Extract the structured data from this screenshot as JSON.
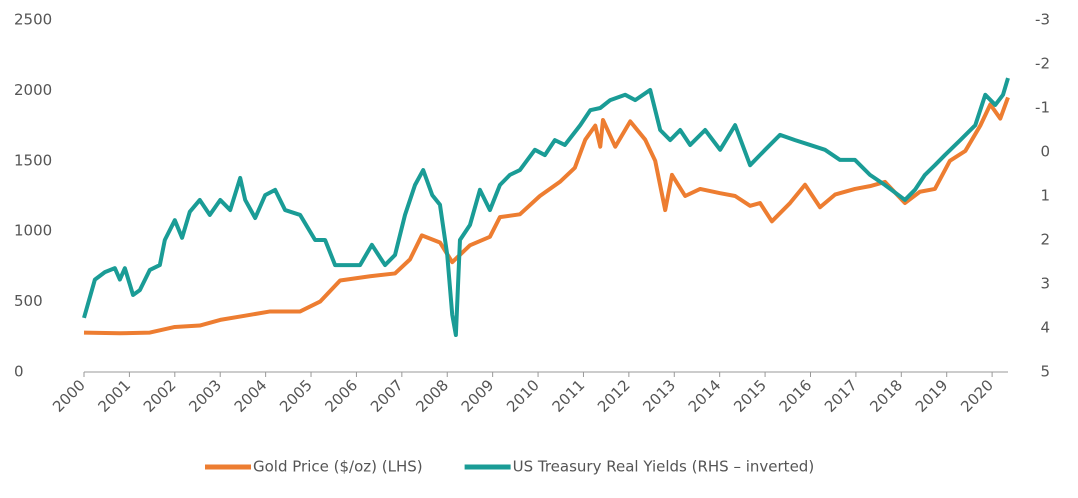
{
  "chart_data": {
    "type": "line",
    "xlim": [
      2000,
      2020.35
    ],
    "xticks": [
      2000,
      2001,
      2002,
      2003,
      2004,
      2005,
      2006,
      2007,
      2008,
      2009,
      2010,
      2011,
      2012,
      2013,
      2014,
      2015,
      2016,
      2017,
      2018,
      2019,
      2020
    ],
    "ylim": [
      0,
      2500
    ],
    "yticks": [
      0,
      500,
      1000,
      1500,
      2000,
      2500
    ],
    "y2lim": [
      5,
      -3
    ],
    "y2ticks": [
      5,
      4,
      3,
      2,
      1,
      0,
      -1,
      -2,
      -3
    ],
    "legend": "bottom",
    "series": [
      {
        "name": "Gold Price ($/oz) (LHS)",
        "color": "#ed7d31",
        "x": [
          2000,
          2000.79,
          2001.45,
          2002.0,
          2002.55,
          2003.0,
          2003.55,
          2004.1,
          2004.76,
          2005.2,
          2005.64,
          2006.3,
          2006.85,
          2007.18,
          2007.44,
          2007.84,
          2008.11,
          2008.5,
          2008.94,
          2009.16,
          2009.6,
          2010.04,
          2010.48,
          2010.81,
          2011.04,
          2011.26,
          2011.37,
          2011.43,
          2011.7,
          2012.03,
          2012.36,
          2012.58,
          2012.8,
          2012.95,
          2013.24,
          2013.57,
          2014.01,
          2014.34,
          2014.67,
          2014.89,
          2015.15,
          2015.55,
          2015.88,
          2016.21,
          2016.54,
          2016.98,
          2017.31,
          2017.64,
          2018.08,
          2018.41,
          2018.74,
          2019.07,
          2019.41,
          2019.74,
          2019.96,
          2020.18,
          2020.35
        ],
        "values": [
          280,
          275,
          280,
          320,
          330,
          370,
          400,
          430,
          430,
          500,
          650,
          680,
          700,
          800,
          970,
          920,
          780,
          900,
          960,
          1100,
          1120,
          1250,
          1350,
          1450,
          1650,
          1750,
          1600,
          1790,
          1600,
          1780,
          1650,
          1500,
          1150,
          1400,
          1250,
          1300,
          1270,
          1250,
          1180,
          1200,
          1070,
          1200,
          1330,
          1170,
          1260,
          1300,
          1320,
          1350,
          1200,
          1280,
          1300,
          1500,
          1570,
          1750,
          1900,
          1800,
          1950
        ]
      },
      {
        "name": "US Treasury Real Yields (RHS – inverted)",
        "color": "#1a9c96",
        "axis": "y2",
        "x": [
          2000,
          2000.24,
          2000.46,
          2000.68,
          2000.79,
          2000.9,
          2001.08,
          2001.23,
          2001.45,
          2001.67,
          2001.78,
          2002.0,
          2002.16,
          2002.33,
          2002.55,
          2002.77,
          2003.0,
          2003.22,
          2003.44,
          2003.55,
          2003.77,
          2003.99,
          2004.21,
          2004.43,
          2004.76,
          2005.09,
          2005.31,
          2005.53,
          2005.86,
          2006.08,
          2006.34,
          2006.63,
          2006.85,
          2007.07,
          2007.29,
          2007.47,
          2007.67,
          2007.84,
          2008.0,
          2008.11,
          2008.19,
          2008.28,
          2008.5,
          2008.72,
          2008.94,
          2009.16,
          2009.38,
          2009.6,
          2009.93,
          2010.15,
          2010.37,
          2010.59,
          2010.93,
          2011.15,
          2011.37,
          2011.59,
          2011.92,
          2012.14,
          2012.47,
          2012.69,
          2012.91,
          2013.13,
          2013.35,
          2013.68,
          2014.01,
          2014.34,
          2014.67,
          2015.0,
          2015.33,
          2015.66,
          2015.99,
          2016.32,
          2016.65,
          2016.98,
          2017.31,
          2017.64,
          2018.08,
          2018.3,
          2018.52,
          2018.74,
          2018.96,
          2019.3,
          2019.63,
          2019.85,
          2020.07,
          2020.24,
          2020.35
        ],
        "values": [
          3.77,
          2.9,
          2.73,
          2.64,
          2.9,
          2.64,
          3.25,
          3.14,
          2.68,
          2.57,
          2.0,
          1.55,
          1.95,
          1.36,
          1.09,
          1.43,
          1.09,
          1.32,
          0.59,
          1.09,
          1.5,
          0.98,
          0.86,
          1.32,
          1.43,
          2.0,
          2.0,
          2.57,
          2.57,
          2.57,
          2.11,
          2.57,
          2.34,
          1.43,
          0.75,
          0.41,
          0.98,
          1.2,
          2.34,
          3.7,
          4.16,
          2.0,
          1.66,
          0.86,
          1.32,
          0.75,
          0.52,
          0.41,
          -0.05,
          0.07,
          -0.27,
          -0.16,
          -0.61,
          -0.95,
          -1.0,
          -1.18,
          -1.3,
          -1.18,
          -1.41,
          -0.5,
          -0.27,
          -0.5,
          -0.16,
          -0.5,
          -0.05,
          -0.61,
          0.3,
          -0.05,
          -0.39,
          -0.27,
          -0.16,
          -0.05,
          0.18,
          0.18,
          0.52,
          0.75,
          1.09,
          0.86,
          0.52,
          0.3,
          0.07,
          -0.27,
          -0.61,
          -1.3,
          -1.07,
          -1.3,
          -1.68
        ]
      }
    ]
  }
}
